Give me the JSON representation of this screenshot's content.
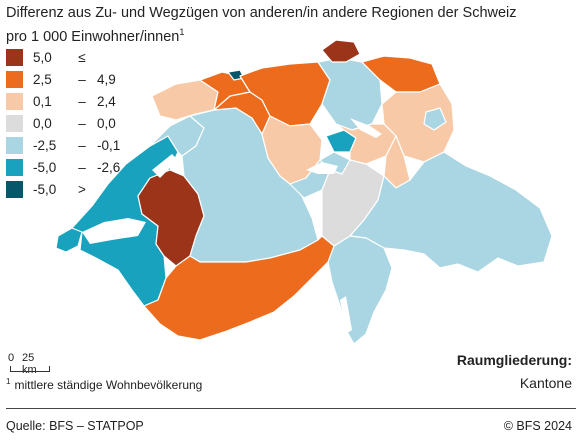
{
  "title_line1": "Differenz aus Zu- und Wegzügen von anderen/in andere Regionen der Schweiz",
  "title_line2": "pro 1 000 Einwohner/innen",
  "title_footnote_mark": "1",
  "legend": [
    {
      "lo": "5,0",
      "sep": "≤",
      "hi": "",
      "color": "#9b3418"
    },
    {
      "lo": "2,5",
      "sep": "–",
      "hi": "4,9",
      "color": "#ec6b1c"
    },
    {
      "lo": "0,1",
      "sep": "–",
      "hi": "2,4",
      "color": "#f8c9a6"
    },
    {
      "lo": "0,0",
      "sep": "–",
      "hi": "0,0",
      "color": "#dcdcdc"
    },
    {
      "lo": "-2,5",
      "sep": "–",
      "hi": "-0,1",
      "color": "#a9d6e2"
    },
    {
      "lo": "-5,0",
      "sep": "–",
      "hi": "-2,6",
      "color": "#18a2bd"
    },
    {
      "lo": "-5,0",
      "sep": ">",
      "hi": "",
      "color": "#07566a"
    }
  ],
  "scale": {
    "zero": "0",
    "label": "25 km"
  },
  "footnote_mark": "1",
  "footnote": "mittlere ständige Wohnbevölkerung",
  "raumgliederung_label": "Raumgliederung:",
  "raumgliederung_value": "Kantone",
  "source": "Quelle: BFS – STATPOP",
  "copyright": "© BFS 2024",
  "colors": {
    "high": "#9b3418",
    "mid_high": "#ec6b1c",
    "low_pos": "#f8c9a6",
    "zero": "#dcdcdc",
    "low_neg": "#a9d6e2",
    "mid_neg": "#18a2bd",
    "very_neg": "#07566a",
    "lake": "#ffffff",
    "border": "#ffffff"
  }
}
